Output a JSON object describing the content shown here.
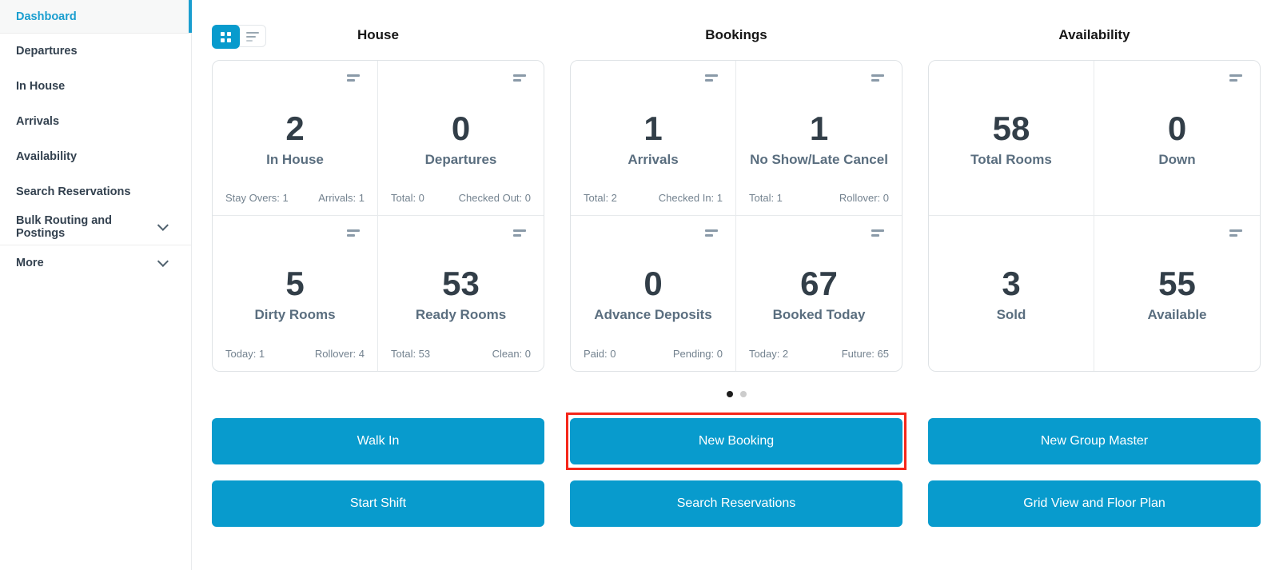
{
  "sidebar": {
    "active_item": "Dashboard",
    "items": [
      {
        "label": "Dashboard",
        "active": true
      },
      {
        "label": "Departures"
      },
      {
        "label": "In House"
      },
      {
        "label": "Arrivals"
      },
      {
        "label": "Availability"
      },
      {
        "label": "Search Reservations"
      },
      {
        "label": "Bulk Routing and Postings",
        "expandable": true
      },
      {
        "label": "More",
        "expandable": true
      }
    ]
  },
  "view_toggle": {
    "active": "grid",
    "options": [
      "grid-view",
      "list-view"
    ]
  },
  "groups": [
    {
      "title": "House",
      "cards": [
        {
          "value": "2",
          "label": "In House",
          "footer_left": "Stay Overs: 1",
          "footer_right": "Arrivals: 1"
        },
        {
          "value": "0",
          "label": "Departures",
          "footer_left": "Total: 0",
          "footer_right": "Checked Out: 0"
        },
        {
          "value": "5",
          "label": "Dirty Rooms",
          "footer_left": "Today: 1",
          "footer_right": "Rollover: 4"
        },
        {
          "value": "53",
          "label": "Ready Rooms",
          "footer_left": "Total: 53",
          "footer_right": "Clean: 0"
        }
      ]
    },
    {
      "title": "Bookings",
      "cards": [
        {
          "value": "1",
          "label": "Arrivals",
          "footer_left": "Total: 2",
          "footer_right": "Checked In: 1"
        },
        {
          "value": "1",
          "label": "No Show/Late Cancel",
          "footer_left": "Total: 1",
          "footer_right": "Rollover: 0"
        },
        {
          "value": "0",
          "label": "Advance Deposits",
          "footer_left": "Paid: 0",
          "footer_right": "Pending: 0"
        },
        {
          "value": "67",
          "label": "Booked Today",
          "footer_left": "Today: 2",
          "footer_right": "Future: 65"
        }
      ]
    },
    {
      "title": "Availability",
      "cards": [
        {
          "value": "58",
          "label": "Total Rooms"
        },
        {
          "value": "0",
          "label": "Down"
        },
        {
          "value": "3",
          "label": "Sold"
        },
        {
          "value": "55",
          "label": "Available"
        }
      ]
    }
  ],
  "carousel": {
    "pages": 2,
    "active_page": 1
  },
  "actions": [
    {
      "label": "Walk In"
    },
    {
      "label": "New Booking",
      "highlighted": true
    },
    {
      "label": "New Group Master"
    },
    {
      "label": "Start Shift"
    },
    {
      "label": "Search Reservations"
    },
    {
      "label": "Grid View and Floor Plan"
    }
  ],
  "colors": {
    "accent_blue": "#089bcd",
    "active_nav_blue": "#1a9ecf",
    "highlight_red": "#f5261a"
  }
}
